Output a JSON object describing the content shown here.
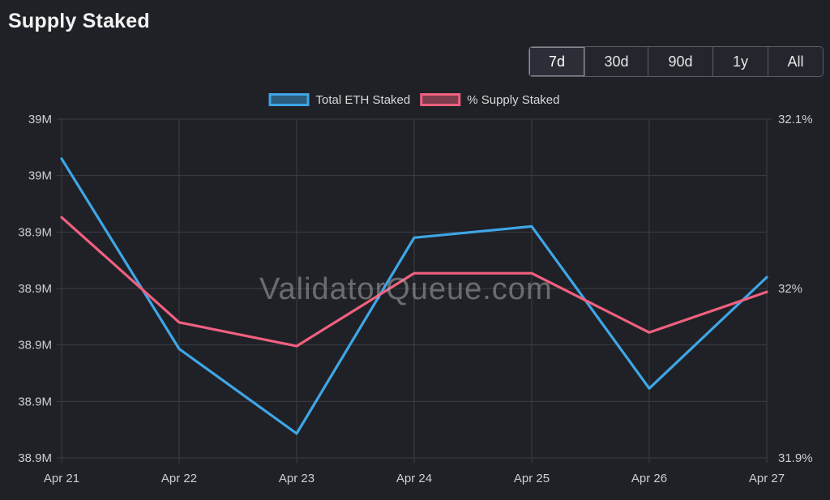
{
  "title": "Supply Staked",
  "range": {
    "options": [
      "7d",
      "30d",
      "90d",
      "1y",
      "All"
    ],
    "active": "7d"
  },
  "watermark": "ValidatorQueue.com",
  "colors": {
    "total_eth": "#3ea6e6",
    "supply_pct": "#f0607e",
    "grid": "#3b3e46",
    "background": "#1f2127"
  },
  "chart_data": {
    "type": "line",
    "x": [
      "Apr 21",
      "Apr 22",
      "Apr 23",
      "Apr 24",
      "Apr 25",
      "Apr 26",
      "Apr 27"
    ],
    "legend_position": "top-center",
    "grid": true,
    "y_left": {
      "ticks": [
        "39M",
        "39M",
        "38.9M",
        "38.9M",
        "38.9M",
        "38.9M",
        "38.9M"
      ],
      "range": [
        0,
        6
      ]
    },
    "y_right": {
      "ticks": [
        "32.1%",
        "32%",
        "31.9%"
      ],
      "range": [
        31.9,
        32.1
      ]
    },
    "series": [
      {
        "name": "Total ETH Staked",
        "axis": "left",
        "color": "#3ea6e6",
        "values": [
          5.3,
          1.93,
          0.43,
          3.9,
          4.1,
          1.23,
          3.2
        ]
      },
      {
        "name": "% Supply Staked",
        "axis": "right",
        "color": "#f0607e",
        "values": [
          32.042,
          31.98,
          31.966,
          32.009,
          32.009,
          31.974,
          31.998
        ]
      }
    ]
  }
}
